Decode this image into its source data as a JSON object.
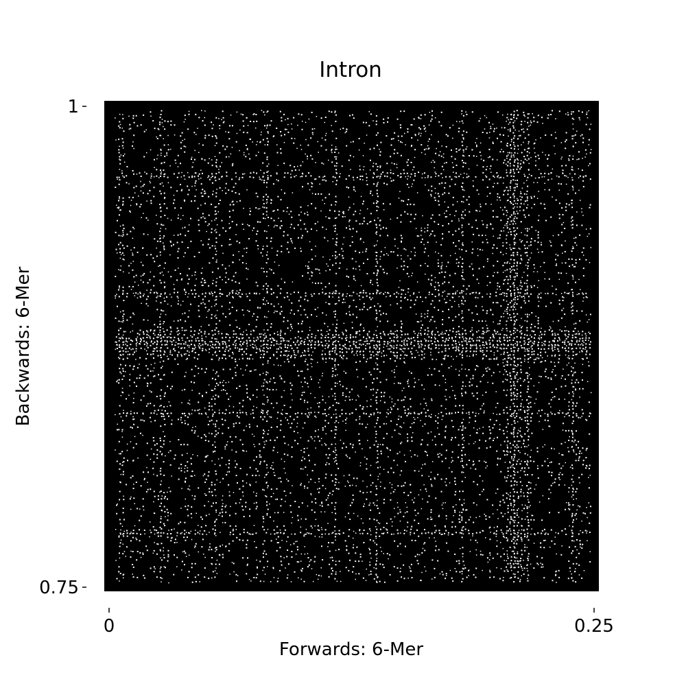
{
  "chart_data": {
    "type": "heatmap",
    "title": "Intron",
    "xlabel": "Forwards: 6-Mer",
    "ylabel": "Backwards: 6-Mer",
    "xlim": [
      0,
      0.25
    ],
    "ylim": [
      0.75,
      1
    ],
    "x_ticks": [
      {
        "value": 0,
        "label": "0"
      },
      {
        "value": 0.25,
        "label": "0.25"
      }
    ],
    "y_ticks": [
      {
        "value": 0.75,
        "label": "0.75"
      },
      {
        "value": 1,
        "label": "1"
      }
    ],
    "grid": false,
    "colors": {
      "background": "#000000",
      "points": "#ffffff"
    },
    "bright_bands": {
      "horizontal_y": [
        0.9649,
        0.9033,
        0.8775,
        0.8411,
        0.7792
      ],
      "vertical_x": [
        0.0054,
        0.0262,
        0.0537,
        0.0799,
        0.1157,
        0.1375,
        0.1813,
        0.2077,
        0.215,
        0.2382
      ],
      "strong_horizontal": {
        "y": 0.8775,
        "width": 0.015
      },
      "strong_vertical": {
        "x": 0.2077,
        "width": 0.012
      }
    }
  }
}
